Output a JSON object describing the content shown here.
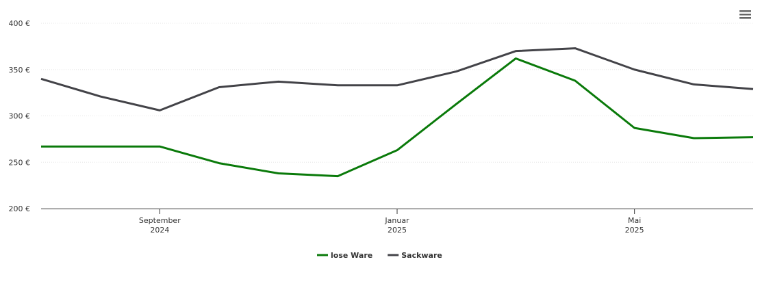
{
  "chart_data": {
    "type": "line",
    "x": [
      "2024-07",
      "2024-08",
      "2024-09",
      "2024-10",
      "2024-11",
      "2024-12",
      "2025-01",
      "2025-02",
      "2025-03",
      "2025-04",
      "2025-05",
      "2025-06",
      "2025-07"
    ],
    "series": [
      {
        "name": "lose Ware",
        "color": "#0a7a0a",
        "values": [
          267,
          267,
          267,
          249,
          238,
          235,
          263,
          313,
          362,
          338,
          287,
          276,
          277
        ]
      },
      {
        "name": "Sackware",
        "color": "#434348",
        "values": [
          340,
          321,
          306,
          331,
          337,
          333,
          333,
          348,
          370,
          373,
          350,
          334,
          329
        ]
      }
    ],
    "xlim": [
      "2024-07",
      "2025-07"
    ],
    "xticks": [
      {
        "value": "2024-09",
        "label": "September 2024"
      },
      {
        "value": "2025-01",
        "label": "Januar 2025"
      },
      {
        "value": "2025-05",
        "label": "Mai 2025"
      }
    ],
    "ylim": [
      200,
      400
    ],
    "yticks": [
      {
        "value": 200,
        "label": "200 €"
      },
      {
        "value": 250,
        "label": "250 €"
      },
      {
        "value": 300,
        "label": "300 €"
      },
      {
        "value": 350,
        "label": "350 €"
      },
      {
        "value": 400,
        "label": "400 €"
      }
    ],
    "grid": true,
    "legend": "bottom"
  }
}
